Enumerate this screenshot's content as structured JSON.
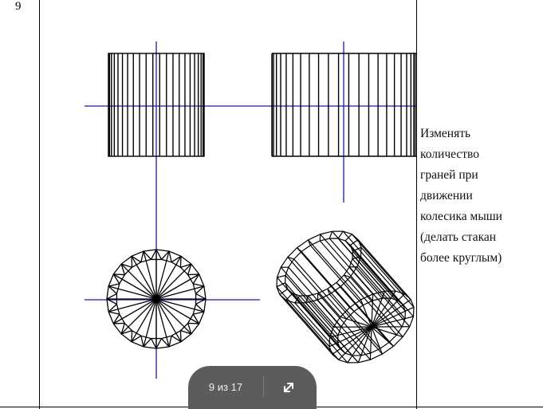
{
  "table": {
    "row_number": "9",
    "note_lines": [
      "Изменять",
      "количество",
      "граней при",
      "движении",
      "колесика мыши",
      "(делать стакан",
      "более круглым)"
    ]
  },
  "viewer": {
    "page_counter": "9 из 17",
    "expand_icon": "expand-diagonal-icon"
  },
  "colors": {
    "axis": "#1a1aa8",
    "wire": "#000000",
    "pill": "#5c5c5c"
  }
}
